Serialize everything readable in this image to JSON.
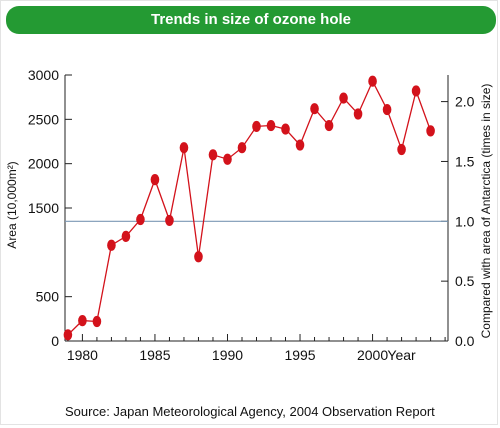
{
  "header": {
    "title": "Trends in size of ozone hole"
  },
  "chart_data": {
    "type": "line",
    "x": [
      1979,
      1980,
      1981,
      1982,
      1983,
      1984,
      1985,
      1986,
      1987,
      1988,
      1989,
      1990,
      1991,
      1992,
      1993,
      1994,
      1995,
      1996,
      1997,
      1998,
      1999,
      2000,
      2001,
      2002,
      2003,
      2004
    ],
    "values": [
      70,
      230,
      220,
      1080,
      1180,
      1370,
      1820,
      1360,
      2180,
      950,
      2100,
      2050,
      2180,
      2420,
      2430,
      2390,
      2210,
      2620,
      2430,
      2740,
      2560,
      2930,
      2610,
      2160,
      2820,
      2370
    ],
    "xticks": [
      1980,
      1985,
      1990,
      1995,
      2000
    ],
    "xlabel": "Year",
    "ylabel": "Area (10,000m²)",
    "yticks_left": [
      "0",
      "500",
      "1500",
      "2000",
      "2500",
      "3000"
    ],
    "yticks_left_values": [
      0,
      500,
      1500,
      2000,
      2500,
      3000
    ],
    "ylim_left": [
      0,
      3000
    ],
    "y2label": "Compared with area of Antarctica (times in size)",
    "yticks_right": [
      "0.0",
      "0.5",
      "1.0",
      "1.5",
      "2.0"
    ],
    "yticks_right_values": [
      0.0,
      0.5,
      1.0,
      1.5,
      2.0
    ],
    "reference_line_value": 1.0,
    "series_color": "#d3121b",
    "reference_color": "#7b98b5",
    "grid": false
  },
  "footer": {
    "source": "Source: Japan Meteorological Agency, 2004 Observation Report"
  }
}
